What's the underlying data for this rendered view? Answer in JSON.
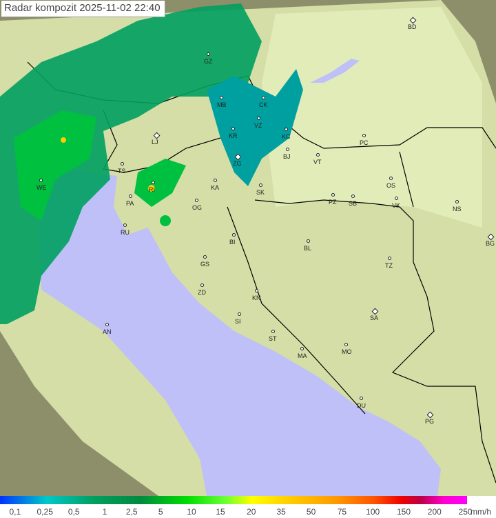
{
  "title": "Radar kompozit  2025-11-02   22:40",
  "colors": {
    "sea": "#c0c0f8",
    "land": "#d8e0a8",
    "outside": "#8c8f6a",
    "rain_light": "#00a060",
    "rain_mid": "#00d000",
    "border": "#000000"
  },
  "cities": [
    {
      "code": "GZ",
      "big": false
    },
    {
      "code": "BD",
      "big": true
    },
    {
      "code": "MB",
      "big": false
    },
    {
      "code": "CK",
      "big": false
    },
    {
      "code": "VZ",
      "big": false
    },
    {
      "code": "KC",
      "big": false
    },
    {
      "code": "PC",
      "big": false
    },
    {
      "code": "LJ",
      "big": true
    },
    {
      "code": "KR",
      "big": false
    },
    {
      "code": "ZG",
      "big": true
    },
    {
      "code": "BJ",
      "big": false
    },
    {
      "code": "VT",
      "big": false
    },
    {
      "code": "TS",
      "big": false
    },
    {
      "code": "WE",
      "big": false
    },
    {
      "code": "RI",
      "big": false
    },
    {
      "code": "KA",
      "big": false
    },
    {
      "code": "SK",
      "big": false
    },
    {
      "code": "OS",
      "big": false
    },
    {
      "code": "PA",
      "big": false
    },
    {
      "code": "OG",
      "big": false
    },
    {
      "code": "PZ",
      "big": false
    },
    {
      "code": "SB",
      "big": false
    },
    {
      "code": "VK",
      "big": false
    },
    {
      "code": "NS",
      "big": false
    },
    {
      "code": "RU",
      "big": false
    },
    {
      "code": "BI",
      "big": false
    },
    {
      "code": "BL",
      "big": false
    },
    {
      "code": "BG",
      "big": true
    },
    {
      "code": "GS",
      "big": false
    },
    {
      "code": "TZ",
      "big": false
    },
    {
      "code": "ZD",
      "big": false
    },
    {
      "code": "KN",
      "big": false
    },
    {
      "code": "SA",
      "big": true
    },
    {
      "code": "SI",
      "big": false
    },
    {
      "code": "AN",
      "big": false
    },
    {
      "code": "ST",
      "big": false
    },
    {
      "code": "MA",
      "big": false
    },
    {
      "code": "MO",
      "big": false
    },
    {
      "code": "DU",
      "big": false
    },
    {
      "code": "PG",
      "big": true
    }
  ],
  "legend": {
    "labels": [
      "0,1",
      "0,25",
      "0,5",
      "1",
      "2,5",
      "5",
      "10",
      "15",
      "20",
      "35",
      "50",
      "75",
      "100",
      "150",
      "200",
      "250"
    ],
    "unit": "mm/h"
  }
}
